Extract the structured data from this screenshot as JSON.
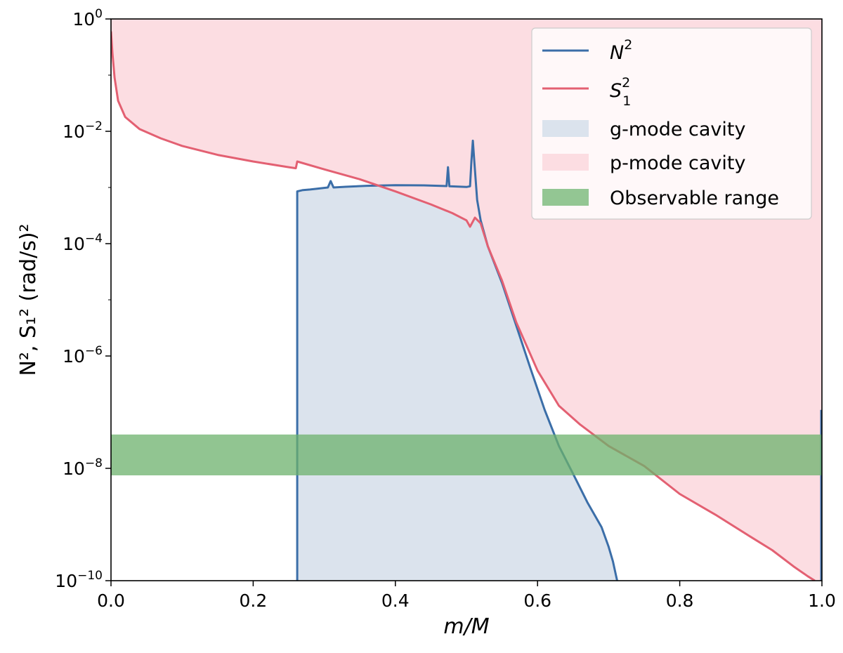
{
  "chart_data": {
    "type": "line",
    "xlabel": "m/M",
    "ylabel": "N², S₁² (rad/s)²",
    "xlim": [
      0.0,
      1.0
    ],
    "ylim": [
      1e-10,
      1.0
    ],
    "yscale": "log",
    "x_ticks": [
      {
        "value": 0.0,
        "label": "0.0"
      },
      {
        "value": 0.2,
        "label": "0.2"
      },
      {
        "value": 0.4,
        "label": "0.4"
      },
      {
        "value": 0.6,
        "label": "0.6"
      },
      {
        "value": 0.8,
        "label": "0.8"
      },
      {
        "value": 1.0,
        "label": "1.0"
      }
    ],
    "y_ticks": [
      {
        "value": 1e-10,
        "base": "10",
        "exp": "−10"
      },
      {
        "value": 1e-08,
        "base": "10",
        "exp": "−8"
      },
      {
        "value": 1e-06,
        "base": "10",
        "exp": "−6"
      },
      {
        "value": 0.0001,
        "base": "10",
        "exp": "−4"
      },
      {
        "value": 0.01,
        "base": "10",
        "exp": "−2"
      },
      {
        "value": 1.0,
        "base": "10",
        "exp": "0"
      }
    ],
    "grid": false,
    "legend_position": "top-right",
    "series": [
      {
        "name": "N²",
        "color": "#3b6ea8",
        "kind": "line",
        "points": [
          [
            0.262,
            1e-10
          ],
          [
            0.262,
            0.00085
          ],
          [
            0.27,
            0.0009
          ],
          [
            0.28,
            0.00092
          ],
          [
            0.29,
            0.00095
          ],
          [
            0.305,
            0.001
          ],
          [
            0.309,
            0.0013
          ],
          [
            0.313,
            0.001
          ],
          [
            0.33,
            0.00103
          ],
          [
            0.36,
            0.00107
          ],
          [
            0.4,
            0.0011
          ],
          [
            0.44,
            0.00109
          ],
          [
            0.472,
            0.00106
          ],
          [
            0.474,
            0.0023
          ],
          [
            0.476,
            0.00105
          ],
          [
            0.5,
            0.00102
          ],
          [
            0.505,
            0.00105
          ],
          [
            0.507,
            0.003
          ],
          [
            0.509,
            0.0068
          ],
          [
            0.511,
            0.003
          ],
          [
            0.515,
            0.0006
          ],
          [
            0.52,
            0.00026
          ],
          [
            0.53,
            9e-05
          ],
          [
            0.55,
            2e-05
          ],
          [
            0.57,
            3.5e-06
          ],
          [
            0.59,
            6e-07
          ],
          [
            0.61,
            1.1e-07
          ],
          [
            0.63,
            2.5e-08
          ],
          [
            0.65,
            8e-09
          ],
          [
            0.67,
            2.5e-09
          ],
          [
            0.69,
            9e-10
          ],
          [
            0.7,
            4e-10
          ],
          [
            0.706,
            2.2e-10
          ],
          [
            0.71,
            1.3e-10
          ],
          [
            0.712,
            1e-10
          ]
        ]
      },
      {
        "name": "S₁²",
        "color": "#e36072",
        "kind": "line",
        "points": [
          [
            0.0,
            0.6
          ],
          [
            0.002,
            0.25
          ],
          [
            0.005,
            0.09
          ],
          [
            0.01,
            0.035
          ],
          [
            0.02,
            0.018
          ],
          [
            0.04,
            0.011
          ],
          [
            0.07,
            0.0075
          ],
          [
            0.1,
            0.0055
          ],
          [
            0.15,
            0.0038
          ],
          [
            0.2,
            0.0029
          ],
          [
            0.25,
            0.0023
          ],
          [
            0.26,
            0.0022
          ],
          [
            0.262,
            0.0029
          ],
          [
            0.3,
            0.0021
          ],
          [
            0.35,
            0.0014
          ],
          [
            0.4,
            0.00085
          ],
          [
            0.45,
            0.0005
          ],
          [
            0.48,
            0.00035
          ],
          [
            0.5,
            0.00026
          ],
          [
            0.505,
            0.0002
          ],
          [
            0.512,
            0.00029
          ],
          [
            0.52,
            0.00023
          ],
          [
            0.53,
            9e-05
          ],
          [
            0.55,
            2.2e-05
          ],
          [
            0.57,
            4e-06
          ],
          [
            0.6,
            5.5e-07
          ],
          [
            0.63,
            1.3e-07
          ],
          [
            0.66,
            6e-08
          ],
          [
            0.7,
            2.5e-08
          ],
          [
            0.75,
            1.1e-08
          ],
          [
            0.8,
            3.5e-09
          ],
          [
            0.85,
            1.5e-09
          ],
          [
            0.9,
            6e-10
          ],
          [
            0.93,
            3.5e-10
          ],
          [
            0.96,
            1.8e-10
          ],
          [
            0.98,
            1.2e-10
          ],
          [
            0.99,
            1e-10
          ]
        ]
      }
    ],
    "regions": [
      {
        "name": "g-mode cavity",
        "color": "#dbe3ed",
        "under_series": "N²"
      },
      {
        "name": "p-mode cavity",
        "color": "#fcdde2",
        "above_series": "S₁²"
      },
      {
        "name": "Observable range",
        "color": "#6cb26c",
        "opacity": 0.75,
        "y_range": [
          7.5e-09,
          4e-08
        ]
      }
    ],
    "legend": [
      {
        "name": "N²",
        "base": "N",
        "sup": "2",
        "sub": "",
        "kind": "line",
        "color": "#3b6ea8"
      },
      {
        "name": "S₁²",
        "base": "S",
        "sup": "2",
        "sub": "1",
        "kind": "line",
        "color": "#e36072"
      },
      {
        "name": "g-mode cavity",
        "text": "g-mode cavity",
        "kind": "patch",
        "color": "#dbe3ed"
      },
      {
        "name": "p-mode cavity",
        "text": "p-mode cavity",
        "kind": "patch",
        "color": "#fcdde2"
      },
      {
        "name": "Observable range",
        "text": "Observable range",
        "kind": "patch",
        "color": "#93c693"
      }
    ]
  }
}
